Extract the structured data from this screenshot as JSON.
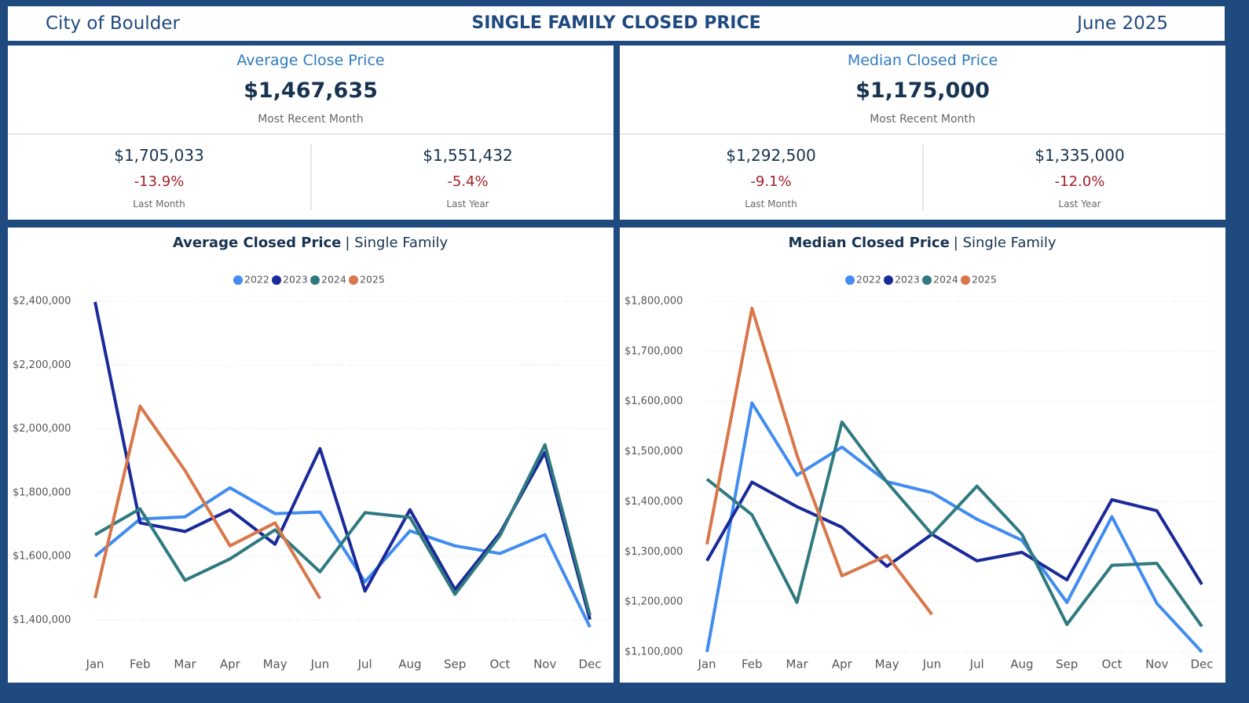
{
  "header": {
    "left": "City of Boulder",
    "title": "SINGLE FAMILY CLOSED PRICE",
    "right": "June 2025"
  },
  "kpis": [
    {
      "title": "Average Close Price",
      "value": "$1,467,635",
      "caption": "Most Recent Month",
      "comparisons": [
        {
          "value": "$1,705,033",
          "change": "-13.9%",
          "caption": "Last Month"
        },
        {
          "value": "$1,551,432",
          "change": "-5.4%",
          "caption": "Last Year"
        }
      ]
    },
    {
      "title": "Median Closed Price",
      "value": "$1,175,000",
      "caption": "Most Recent Month",
      "comparisons": [
        {
          "value": "$1,292,500",
          "change": "-9.1%",
          "caption": "Last Month"
        },
        {
          "value": "$1,335,000",
          "change": "-12.0%",
          "caption": "Last Year"
        }
      ]
    }
  ],
  "chart_data": [
    {
      "type": "line",
      "title": "Average Closed Price",
      "subtitle": "| Single Family",
      "categories": [
        "Jan",
        "Feb",
        "Mar",
        "Apr",
        "May",
        "Jun",
        "Jul",
        "Aug",
        "Sep",
        "Oct",
        "Nov",
        "Dec"
      ],
      "ylim": [
        1300000,
        2400000
      ],
      "yticks": [
        {
          "value": 1400000,
          "label": "$1,400,000"
        },
        {
          "value": 1600000,
          "label": "$1,600,000"
        },
        {
          "value": 1800000,
          "label": "$1,800,000"
        },
        {
          "value": 2000000,
          "label": "$2,000,000"
        },
        {
          "value": 2200000,
          "label": "$2,200,000"
        },
        {
          "value": 2400000,
          "label": "$2,400,000"
        }
      ],
      "grid": true,
      "legend": "top",
      "series": [
        {
          "name": "2022",
          "color": "#418CF0",
          "values": [
            1600000,
            1717000,
            1724000,
            1815000,
            1734000,
            1739000,
            1520000,
            1680000,
            1633000,
            1609000,
            1668000,
            1378000
          ]
        },
        {
          "name": "2023",
          "color": "#1A2A9A",
          "values": [
            2398000,
            1705000,
            1678000,
            1746000,
            1638000,
            1938000,
            1491000,
            1746000,
            1496000,
            1673000,
            1926000,
            1402000
          ]
        },
        {
          "name": "2024",
          "color": "#2F7A80",
          "values": [
            1668000,
            1749000,
            1525000,
            1592000,
            1683000,
            1551432,
            1737000,
            1722000,
            1481000,
            1665000,
            1950000,
            1415000
          ]
        },
        {
          "name": "2025",
          "color": "#D9774A",
          "values": [
            1469000,
            2071000,
            1869000,
            1633000,
            1705033,
            1467635,
            null,
            null,
            null,
            null,
            null,
            null
          ]
        }
      ]
    },
    {
      "type": "line",
      "title": "Median Closed Price",
      "subtitle": "| Single Family",
      "categories": [
        "Jan",
        "Feb",
        "Mar",
        "Apr",
        "May",
        "Jun",
        "Jul",
        "Aug",
        "Sep",
        "Oct",
        "Nov",
        "Dec"
      ],
      "ylim": [
        1100000,
        1800000
      ],
      "yticks": [
        {
          "value": 1100000,
          "label": "$1,100,000"
        },
        {
          "value": 1200000,
          "label": "$1,200,000"
        },
        {
          "value": 1300000,
          "label": "$1,300,000"
        },
        {
          "value": 1400000,
          "label": "$1,400,000"
        },
        {
          "value": 1500000,
          "label": "$1,500,000"
        },
        {
          "value": 1600000,
          "label": "$1,600,000"
        },
        {
          "value": 1700000,
          "label": "$1,700,000"
        },
        {
          "value": 1800000,
          "label": "$1,800,000"
        }
      ],
      "grid": true,
      "legend": "top",
      "series": [
        {
          "name": "2022",
          "color": "#418CF0",
          "values": [
            1100000,
            1597000,
            1453000,
            1509000,
            1440000,
            1418000,
            1365000,
            1323000,
            1199000,
            1370000,
            1197000,
            1100000
          ]
        },
        {
          "name": "2023",
          "color": "#1A2A9A",
          "values": [
            1282000,
            1439000,
            1390000,
            1349000,
            1271000,
            1335000,
            1282000,
            1299000,
            1244000,
            1404000,
            1382000,
            1235000
          ]
        },
        {
          "name": "2024",
          "color": "#2F7A80",
          "values": [
            1445000,
            1374000,
            1199000,
            1559000,
            1439000,
            1335000,
            1431000,
            1335000,
            1155000,
            1273000,
            1277000,
            1151000
          ]
        },
        {
          "name": "2025",
          "color": "#D9774A",
          "values": [
            1315000,
            1786000,
            1493000,
            1252000,
            1292500,
            1175000,
            null,
            null,
            null,
            null,
            null,
            null
          ]
        }
      ]
    }
  ]
}
